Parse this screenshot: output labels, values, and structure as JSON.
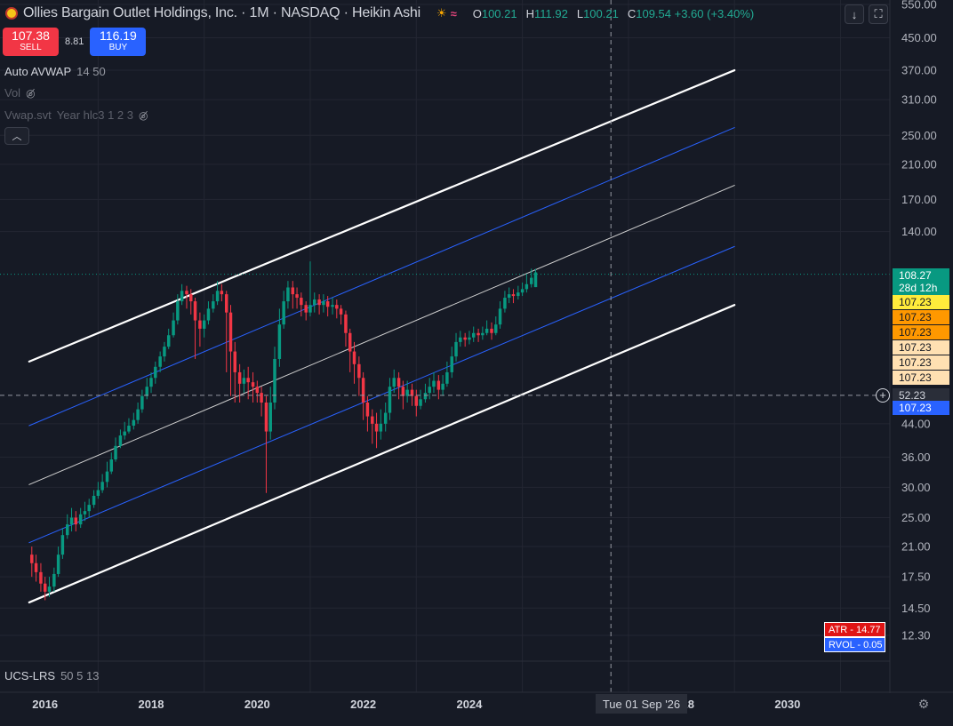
{
  "header": {
    "title": "Ollies Bargain Outlet Holdings, Inc. · 1M · NASDAQ · Heikin Ashi",
    "ohlc": [
      {
        "label": "O",
        "value": "100.21"
      },
      {
        "label": "H",
        "value": "111.92"
      },
      {
        "label": "L",
        "value": "100.21"
      },
      {
        "label": "C",
        "value": "109.54 +3.60 (+3.40%)"
      }
    ],
    "icons": [
      "sun-icon",
      "wave-icon"
    ]
  },
  "trade": {
    "sell_price": "107.38",
    "sell_label": "SELL",
    "spread": "8.81",
    "buy_price": "116.19",
    "buy_label": "BUY"
  },
  "indicators": [
    {
      "name": "Auto AVWAP",
      "params": "14 50",
      "hidden": false
    },
    {
      "name": "Vol",
      "params": "",
      "hidden": true
    },
    {
      "name": "Vwap.svt",
      "params": "Year hlc3 1 2 3",
      "hidden": true
    }
  ],
  "lower_pane": {
    "name": "UCS-LRS",
    "params": "50 5 13"
  },
  "stats": {
    "atr": "ATR - 14.77",
    "rvol": "RVOL - 0.05"
  },
  "crosshair": {
    "date": "Tue 01 Sep '26",
    "price": "52.23"
  },
  "price_tags": [
    {
      "text": "107.23",
      "color": "#ffeb3b",
      "price": 107.23
    },
    {
      "text": "107.23",
      "color": "#ff9800",
      "price": 107.23
    },
    {
      "text": "107.23",
      "color": "#ff9800",
      "price": 107.23
    },
    {
      "text": "107.23",
      "color": "#ffe0b2",
      "price": 107.23
    },
    {
      "text": "107.23",
      "color": "#ffe0b2",
      "price": 107.23
    },
    {
      "text": "107.23",
      "color": "#ffe0b2",
      "price": 107.23
    },
    {
      "text": "107.23",
      "color": "#2962ff",
      "price": 107.23
    }
  ],
  "last_price": {
    "price": "108.27",
    "countdown": "28d 12h"
  },
  "colors": {
    "up": "#089981",
    "down": "#f23645",
    "background": "#161a25",
    "grid": "#232632",
    "channel_outer": "#ffffff",
    "channel_inner": "#2962ff",
    "channel_mid": "#c8c8c8"
  },
  "chart_data": {
    "type": "candlestick",
    "scale": "log",
    "ylim": [
      11.0,
      560.0
    ],
    "y_ticks": [
      550,
      450,
      370,
      310,
      250,
      210,
      170,
      140,
      44,
      36,
      30,
      25,
      21,
      17.5,
      14.5,
      12.3
    ],
    "y_tick_labels": [
      "550.00",
      "450.00",
      "370.00",
      "310.00",
      "250.00",
      "210.00",
      "170.00",
      "140.00",
      "44.00",
      "36.00",
      "30.00",
      "25.00",
      "21.00",
      "17.50",
      "14.50",
      "12.30"
    ],
    "x_ticks": [
      "2016",
      "2018",
      "2020",
      "2022",
      "2024",
      "2028",
      "2030"
    ],
    "xlim": [
      2015.0,
      2031.5
    ],
    "candles": [
      {
        "t": 2015.75,
        "o": 20.0,
        "c": 19.0,
        "h": 21.0,
        "l": 17.5
      },
      {
        "t": 2015.83,
        "o": 19.0,
        "c": 18.0,
        "h": 20.0,
        "l": 17.0
      },
      {
        "t": 2015.92,
        "o": 18.0,
        "c": 16.8,
        "h": 19.0,
        "l": 16.0
      },
      {
        "t": 2016.0,
        "o": 16.8,
        "c": 16.0,
        "h": 17.5,
        "l": 15.2
      },
      {
        "t": 2016.08,
        "o": 16.0,
        "c": 16.5,
        "h": 17.5,
        "l": 15.5
      },
      {
        "t": 2016.17,
        "o": 16.5,
        "c": 17.8,
        "h": 18.5,
        "l": 16.0
      },
      {
        "t": 2016.25,
        "o": 17.8,
        "c": 20.0,
        "h": 21.0,
        "l": 17.5
      },
      {
        "t": 2016.33,
        "o": 20.0,
        "c": 22.5,
        "h": 23.5,
        "l": 19.5
      },
      {
        "t": 2016.42,
        "o": 22.5,
        "c": 24.0,
        "h": 25.5,
        "l": 22.0
      },
      {
        "t": 2016.5,
        "o": 24.0,
        "c": 25.0,
        "h": 26.5,
        "l": 23.0
      },
      {
        "t": 2016.58,
        "o": 25.0,
        "c": 24.0,
        "h": 26.0,
        "l": 23.0
      },
      {
        "t": 2016.67,
        "o": 24.0,
        "c": 25.5,
        "h": 26.5,
        "l": 23.5
      },
      {
        "t": 2016.75,
        "o": 25.5,
        "c": 26.0,
        "h": 27.5,
        "l": 24.5
      },
      {
        "t": 2016.83,
        "o": 26.0,
        "c": 27.0,
        "h": 28.0,
        "l": 25.0
      },
      {
        "t": 2016.92,
        "o": 27.0,
        "c": 28.5,
        "h": 29.5,
        "l": 26.5
      },
      {
        "t": 2017.0,
        "o": 28.5,
        "c": 29.5,
        "h": 31.0,
        "l": 28.0
      },
      {
        "t": 2017.08,
        "o": 29.5,
        "c": 31.0,
        "h": 32.5,
        "l": 29.0
      },
      {
        "t": 2017.17,
        "o": 31.0,
        "c": 33.0,
        "h": 35.0,
        "l": 30.0
      },
      {
        "t": 2017.25,
        "o": 33.0,
        "c": 35.5,
        "h": 37.0,
        "l": 32.5
      },
      {
        "t": 2017.33,
        "o": 35.5,
        "c": 38.5,
        "h": 40.5,
        "l": 35.0
      },
      {
        "t": 2017.42,
        "o": 38.5,
        "c": 41.0,
        "h": 42.5,
        "l": 38.0
      },
      {
        "t": 2017.5,
        "o": 41.0,
        "c": 42.0,
        "h": 44.5,
        "l": 40.0
      },
      {
        "t": 2017.58,
        "o": 42.0,
        "c": 43.5,
        "h": 45.5,
        "l": 41.5
      },
      {
        "t": 2017.67,
        "o": 43.5,
        "c": 45.0,
        "h": 47.0,
        "l": 42.5
      },
      {
        "t": 2017.75,
        "o": 45.0,
        "c": 48.0,
        "h": 50.0,
        "l": 44.0
      },
      {
        "t": 2017.83,
        "o": 48.0,
        "c": 52.0,
        "h": 54.0,
        "l": 47.0
      },
      {
        "t": 2017.92,
        "o": 52.0,
        "c": 55.0,
        "h": 58.0,
        "l": 51.0
      },
      {
        "t": 2018.0,
        "o": 55.0,
        "c": 58.0,
        "h": 60.0,
        "l": 53.0
      },
      {
        "t": 2018.08,
        "o": 58.0,
        "c": 62.0,
        "h": 64.0,
        "l": 56.0
      },
      {
        "t": 2018.17,
        "o": 62.0,
        "c": 66.0,
        "h": 68.0,
        "l": 60.0
      },
      {
        "t": 2018.25,
        "o": 66.0,
        "c": 70.0,
        "h": 72.0,
        "l": 64.0
      },
      {
        "t": 2018.33,
        "o": 70.0,
        "c": 75.0,
        "h": 78.0,
        "l": 69.0
      },
      {
        "t": 2018.42,
        "o": 75.0,
        "c": 82.0,
        "h": 86.0,
        "l": 74.0
      },
      {
        "t": 2018.5,
        "o": 82.0,
        "c": 92.0,
        "h": 96.0,
        "l": 80.0
      },
      {
        "t": 2018.58,
        "o": 92.0,
        "c": 98.0,
        "h": 102.0,
        "l": 90.0
      },
      {
        "t": 2018.67,
        "o": 98.0,
        "c": 96.0,
        "h": 101.0,
        "l": 88.0
      },
      {
        "t": 2018.75,
        "o": 96.0,
        "c": 92.0,
        "h": 99.0,
        "l": 85.0
      },
      {
        "t": 2018.83,
        "o": 92.0,
        "c": 82.0,
        "h": 94.0,
        "l": 65.0
      },
      {
        "t": 2018.92,
        "o": 82.0,
        "c": 78.0,
        "h": 86.0,
        "l": 70.0
      },
      {
        "t": 2019.0,
        "o": 78.0,
        "c": 82.0,
        "h": 85.0,
        "l": 74.0
      },
      {
        "t": 2019.08,
        "o": 82.0,
        "c": 88.0,
        "h": 92.0,
        "l": 80.0
      },
      {
        "t": 2019.17,
        "o": 88.0,
        "c": 92.0,
        "h": 96.0,
        "l": 86.0
      },
      {
        "t": 2019.25,
        "o": 92.0,
        "c": 98.0,
        "h": 104.0,
        "l": 90.0
      },
      {
        "t": 2019.33,
        "o": 98.0,
        "c": 96.0,
        "h": 102.0,
        "l": 92.0
      },
      {
        "t": 2019.42,
        "o": 96.0,
        "c": 86.0,
        "h": 98.0,
        "l": 60.0
      },
      {
        "t": 2019.5,
        "o": 86.0,
        "c": 68.0,
        "h": 90.0,
        "l": 52.0
      },
      {
        "t": 2019.58,
        "o": 68.0,
        "c": 60.0,
        "h": 72.0,
        "l": 50.0
      },
      {
        "t": 2019.67,
        "o": 60.0,
        "c": 56.0,
        "h": 63.0,
        "l": 50.0
      },
      {
        "t": 2019.75,
        "o": 56.0,
        "c": 58.0,
        "h": 61.0,
        "l": 53.0
      },
      {
        "t": 2019.83,
        "o": 58.0,
        "c": 56.5,
        "h": 62.0,
        "l": 51.0
      },
      {
        "t": 2019.92,
        "o": 56.5,
        "c": 55.0,
        "h": 60.0,
        "l": 50.0
      },
      {
        "t": 2020.0,
        "o": 55.0,
        "c": 53.0,
        "h": 57.0,
        "l": 50.0
      },
      {
        "t": 2020.08,
        "o": 53.0,
        "c": 50.0,
        "h": 55.0,
        "l": 46.0
      },
      {
        "t": 2020.17,
        "o": 50.0,
        "c": 42.0,
        "h": 52.0,
        "l": 29.0
      },
      {
        "t": 2020.25,
        "o": 42.0,
        "c": 50.0,
        "h": 55.0,
        "l": 40.0
      },
      {
        "t": 2020.33,
        "o": 50.0,
        "c": 65.0,
        "h": 70.0,
        "l": 48.0
      },
      {
        "t": 2020.42,
        "o": 65.0,
        "c": 80.0,
        "h": 88.0,
        "l": 62.0
      },
      {
        "t": 2020.5,
        "o": 80.0,
        "c": 92.0,
        "h": 98.0,
        "l": 78.0
      },
      {
        "t": 2020.58,
        "o": 92.0,
        "c": 100.0,
        "h": 104.0,
        "l": 88.0
      },
      {
        "t": 2020.67,
        "o": 100.0,
        "c": 96.0,
        "h": 104.0,
        "l": 88.0
      },
      {
        "t": 2020.75,
        "o": 96.0,
        "c": 94.0,
        "h": 100.0,
        "l": 88.0
      },
      {
        "t": 2020.83,
        "o": 94.0,
        "c": 90.0,
        "h": 97.0,
        "l": 84.0
      },
      {
        "t": 2020.92,
        "o": 90.0,
        "c": 86.0,
        "h": 92.0,
        "l": 82.0
      },
      {
        "t": 2021.0,
        "o": 86.0,
        "c": 90.0,
        "h": 117.0,
        "l": 84.0
      },
      {
        "t": 2021.08,
        "o": 90.0,
        "c": 93.0,
        "h": 97.0,
        "l": 86.0
      },
      {
        "t": 2021.17,
        "o": 93.0,
        "c": 90.0,
        "h": 96.0,
        "l": 85.0
      },
      {
        "t": 2021.25,
        "o": 90.0,
        "c": 92.0,
        "h": 96.0,
        "l": 86.0
      },
      {
        "t": 2021.33,
        "o": 92.0,
        "c": 89.0,
        "h": 95.0,
        "l": 84.0
      },
      {
        "t": 2021.42,
        "o": 89.0,
        "c": 90.0,
        "h": 94.0,
        "l": 85.0
      },
      {
        "t": 2021.5,
        "o": 90.0,
        "c": 88.0,
        "h": 93.0,
        "l": 83.0
      },
      {
        "t": 2021.58,
        "o": 88.0,
        "c": 85.0,
        "h": 90.0,
        "l": 80.0
      },
      {
        "t": 2021.67,
        "o": 85.0,
        "c": 76.0,
        "h": 87.0,
        "l": 70.0
      },
      {
        "t": 2021.75,
        "o": 76.0,
        "c": 68.0,
        "h": 78.0,
        "l": 60.0
      },
      {
        "t": 2021.83,
        "o": 68.0,
        "c": 63.0,
        "h": 72.0,
        "l": 56.0
      },
      {
        "t": 2021.92,
        "o": 63.0,
        "c": 58.0,
        "h": 66.0,
        "l": 52.0
      },
      {
        "t": 2022.0,
        "o": 58.0,
        "c": 50.0,
        "h": 60.0,
        "l": 45.0
      },
      {
        "t": 2022.08,
        "o": 50.0,
        "c": 46.0,
        "h": 52.0,
        "l": 42.0
      },
      {
        "t": 2022.17,
        "o": 46.0,
        "c": 44.0,
        "h": 48.0,
        "l": 39.0
      },
      {
        "t": 2022.25,
        "o": 44.0,
        "c": 42.0,
        "h": 47.0,
        "l": 38.0
      },
      {
        "t": 2022.33,
        "o": 42.0,
        "c": 44.0,
        "h": 48.0,
        "l": 40.0
      },
      {
        "t": 2022.42,
        "o": 44.0,
        "c": 47.0,
        "h": 50.0,
        "l": 42.0
      },
      {
        "t": 2022.5,
        "o": 47.0,
        "c": 55.0,
        "h": 58.0,
        "l": 45.0
      },
      {
        "t": 2022.58,
        "o": 55.0,
        "c": 58.0,
        "h": 61.0,
        "l": 53.0
      },
      {
        "t": 2022.67,
        "o": 58.0,
        "c": 55.0,
        "h": 60.0,
        "l": 51.0
      },
      {
        "t": 2022.75,
        "o": 55.0,
        "c": 52.0,
        "h": 57.0,
        "l": 48.0
      },
      {
        "t": 2022.83,
        "o": 52.0,
        "c": 54.0,
        "h": 57.0,
        "l": 50.0
      },
      {
        "t": 2022.92,
        "o": 54.0,
        "c": 52.0,
        "h": 56.0,
        "l": 49.0
      },
      {
        "t": 2023.0,
        "o": 52.0,
        "c": 49.0,
        "h": 54.0,
        "l": 46.0
      },
      {
        "t": 2023.08,
        "o": 49.0,
        "c": 51.0,
        "h": 54.0,
        "l": 48.0
      },
      {
        "t": 2023.17,
        "o": 51.0,
        "c": 53.0,
        "h": 56.0,
        "l": 50.0
      },
      {
        "t": 2023.25,
        "o": 53.0,
        "c": 55.0,
        "h": 58.0,
        "l": 51.0
      },
      {
        "t": 2023.33,
        "o": 55.0,
        "c": 57.0,
        "h": 60.0,
        "l": 53.0
      },
      {
        "t": 2023.42,
        "o": 57.0,
        "c": 54.0,
        "h": 59.0,
        "l": 51.0
      },
      {
        "t": 2023.5,
        "o": 54.0,
        "c": 56.0,
        "h": 59.0,
        "l": 52.0
      },
      {
        "t": 2023.58,
        "o": 56.0,
        "c": 60.0,
        "h": 64.0,
        "l": 55.0
      },
      {
        "t": 2023.67,
        "o": 60.0,
        "c": 66.0,
        "h": 70.0,
        "l": 58.0
      },
      {
        "t": 2023.75,
        "o": 66.0,
        "c": 72.0,
        "h": 76.0,
        "l": 64.0
      },
      {
        "t": 2023.83,
        "o": 72.0,
        "c": 74.0,
        "h": 77.0,
        "l": 70.0
      },
      {
        "t": 2023.92,
        "o": 74.0,
        "c": 73.0,
        "h": 76.0,
        "l": 70.0
      },
      {
        "t": 2024.0,
        "o": 73.0,
        "c": 74.0,
        "h": 77.0,
        "l": 71.0
      },
      {
        "t": 2024.08,
        "o": 74.0,
        "c": 76.0,
        "h": 79.0,
        "l": 72.0
      },
      {
        "t": 2024.17,
        "o": 76.0,
        "c": 75.0,
        "h": 78.0,
        "l": 72.0
      },
      {
        "t": 2024.25,
        "o": 75.0,
        "c": 76.0,
        "h": 79.0,
        "l": 73.0
      },
      {
        "t": 2024.33,
        "o": 76.0,
        "c": 78.0,
        "h": 82.0,
        "l": 75.0
      },
      {
        "t": 2024.42,
        "o": 78.0,
        "c": 76.0,
        "h": 81.0,
        "l": 73.0
      },
      {
        "t": 2024.5,
        "o": 76.0,
        "c": 80.0,
        "h": 84.0,
        "l": 75.0
      },
      {
        "t": 2024.58,
        "o": 80.0,
        "c": 88.0,
        "h": 92.0,
        "l": 78.0
      },
      {
        "t": 2024.67,
        "o": 88.0,
        "c": 94.0,
        "h": 98.0,
        "l": 86.0
      },
      {
        "t": 2024.75,
        "o": 94.0,
        "c": 96.0,
        "h": 100.0,
        "l": 91.0
      },
      {
        "t": 2024.83,
        "o": 96.0,
        "c": 95.0,
        "h": 99.0,
        "l": 91.0
      },
      {
        "t": 2024.92,
        "o": 95.0,
        "c": 97.0,
        "h": 101.0,
        "l": 93.0
      },
      {
        "t": 2025.0,
        "o": 97.0,
        "c": 99.0,
        "h": 103.0,
        "l": 95.0
      },
      {
        "t": 2025.08,
        "o": 99.0,
        "c": 102.0,
        "h": 108.0,
        "l": 97.0
      },
      {
        "t": 2025.17,
        "o": 102.0,
        "c": 106.0,
        "h": 112.0,
        "l": 100.0
      },
      {
        "t": 2025.25,
        "o": 100.21,
        "c": 109.54,
        "h": 111.92,
        "l": 100.21
      }
    ],
    "channels": [
      {
        "name": "upper",
        "color": "#ffffff",
        "width": 2.2,
        "points": [
          [
            2015.7,
            64.0
          ],
          [
            2029.0,
            370.0
          ]
        ]
      },
      {
        "name": "upper-mid",
        "color": "#2962ff",
        "width": 1.0,
        "points": [
          [
            2015.7,
            43.5
          ],
          [
            2029.0,
            262.0
          ]
        ]
      },
      {
        "name": "mid",
        "color": "#d0d0d0",
        "width": 1.0,
        "points": [
          [
            2015.7,
            30.5
          ],
          [
            2029.0,
            185.0
          ]
        ]
      },
      {
        "name": "lower-mid",
        "color": "#2962ff",
        "width": 1.0,
        "points": [
          [
            2015.7,
            21.5
          ],
          [
            2029.0,
            128.0
          ]
        ]
      },
      {
        "name": "lower",
        "color": "#ffffff",
        "width": 2.2,
        "points": [
          [
            2015.7,
            15.0
          ],
          [
            2029.0,
            90.0
          ]
        ]
      }
    ],
    "crosshair_t": 2026.67,
    "crosshair_price": 52.23,
    "last_price_value": 108.27
  }
}
